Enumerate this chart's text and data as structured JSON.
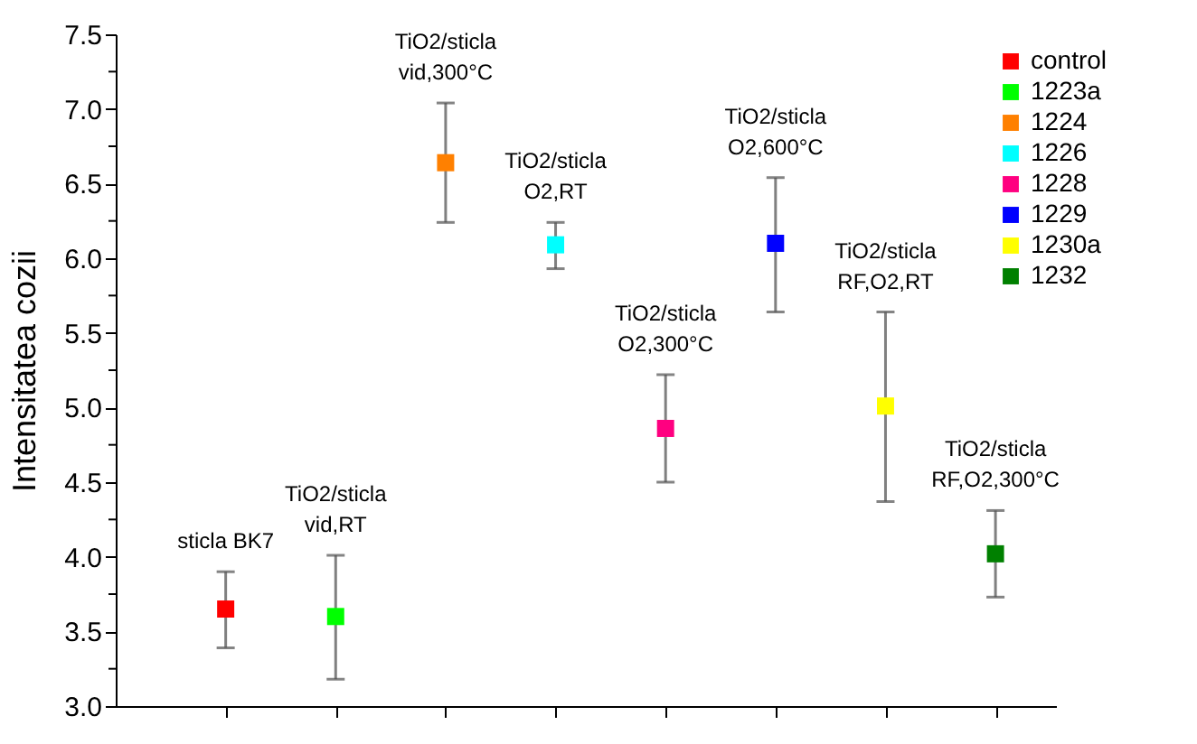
{
  "chart_data": {
    "type": "scatter",
    "ylabel": "Intensitatea cozii",
    "categories": [
      null,
      null,
      null,
      null,
      null,
      null,
      null,
      null
    ],
    "series": [
      {
        "name": "control",
        "color": "#ff0000",
        "values": [
          3.65,
          null,
          null,
          null,
          null,
          null,
          null,
          null
        ],
        "errors": [
          [
            3.39,
            3.9
          ],
          null,
          null,
          null,
          null,
          null,
          null,
          null
        ]
      },
      {
        "name": "1223a",
        "color": "#00ff00",
        "values": [
          null,
          3.6,
          null,
          null,
          null,
          null,
          null,
          null
        ],
        "errors": [
          null,
          [
            3.18,
            4.01
          ],
          null,
          null,
          null,
          null,
          null,
          null
        ]
      },
      {
        "name": "1224",
        "color": "#ff8000",
        "values": [
          null,
          null,
          6.64,
          null,
          null,
          null,
          null,
          null
        ],
        "errors": [
          null,
          null,
          [
            6.24,
            7.04
          ],
          null,
          null,
          null,
          null,
          null
        ]
      },
      {
        "name": "1226",
        "color": "#00ffff",
        "values": [
          null,
          null,
          null,
          6.09,
          null,
          null,
          null,
          null
        ],
        "errors": [
          null,
          null,
          null,
          [
            5.93,
            6.24
          ],
          null,
          null,
          null,
          null
        ]
      },
      {
        "name": "1228",
        "color": "#ff0080",
        "values": [
          null,
          null,
          null,
          null,
          4.86,
          null,
          null,
          null
        ],
        "errors": [
          null,
          null,
          null,
          null,
          [
            4.5,
            5.22
          ],
          null,
          null,
          null
        ]
      },
      {
        "name": "1229",
        "color": "#0000ff",
        "values": [
          null,
          null,
          null,
          null,
          null,
          6.1,
          null,
          null
        ],
        "errors": [
          null,
          null,
          null,
          null,
          null,
          [
            5.64,
            6.54
          ],
          null,
          null
        ]
      },
      {
        "name": "1230a",
        "color": "#ffff00",
        "values": [
          null,
          null,
          null,
          null,
          null,
          null,
          5.01,
          null
        ],
        "errors": [
          null,
          null,
          null,
          null,
          null,
          null,
          [
            4.37,
            5.64
          ],
          null
        ]
      },
      {
        "name": "1232",
        "color": "#008000",
        "values": [
          null,
          null,
          null,
          null,
          null,
          null,
          null,
          4.02
        ],
        "errors": [
          null,
          null,
          null,
          null,
          null,
          null,
          null,
          [
            3.73,
            4.31
          ]
        ]
      }
    ],
    "annotations": [
      "sticla BK7",
      "TiO2/sticla\nvid,RT",
      "TiO2/sticla\nvid,300°C",
      "TiO2/sticla\nO2,RT",
      "TiO2/sticla\nO2,300°C",
      "TiO2/sticla\nO2,600°C",
      "TiO2/sticla\nRF,O2,RT",
      "TiO2/sticla\nRF,O2,300°C"
    ],
    "ylim": [
      3.0,
      7.5
    ],
    "yticks": [
      {
        "value": 3.0,
        "label": "3.0"
      },
      {
        "value": 3.25,
        "label": null
      },
      {
        "value": 3.5,
        "label": "3.5"
      },
      {
        "value": 3.75,
        "label": null
      },
      {
        "value": 4.0,
        "label": "4.0"
      },
      {
        "value": 4.25,
        "label": null
      },
      {
        "value": 4.5,
        "label": "4.5"
      },
      {
        "value": 4.75,
        "label": null
      },
      {
        "value": 5.0,
        "label": "5.0"
      },
      {
        "value": 5.25,
        "label": null
      },
      {
        "value": 5.5,
        "label": "5.5"
      },
      {
        "value": 5.75,
        "label": null
      },
      {
        "value": 6.0,
        "label": "6.0"
      },
      {
        "value": 6.25,
        "label": null
      },
      {
        "value": 6.5,
        "label": "6.5"
      },
      {
        "value": 6.75,
        "label": null
      },
      {
        "value": 7.0,
        "label": "7.0"
      },
      {
        "value": 7.25,
        "label": null
      },
      {
        "value": 7.5,
        "label": "7.5"
      }
    ],
    "tick_labels": "y",
    "grid": false,
    "legend": "top right",
    "marker": "square"
  }
}
